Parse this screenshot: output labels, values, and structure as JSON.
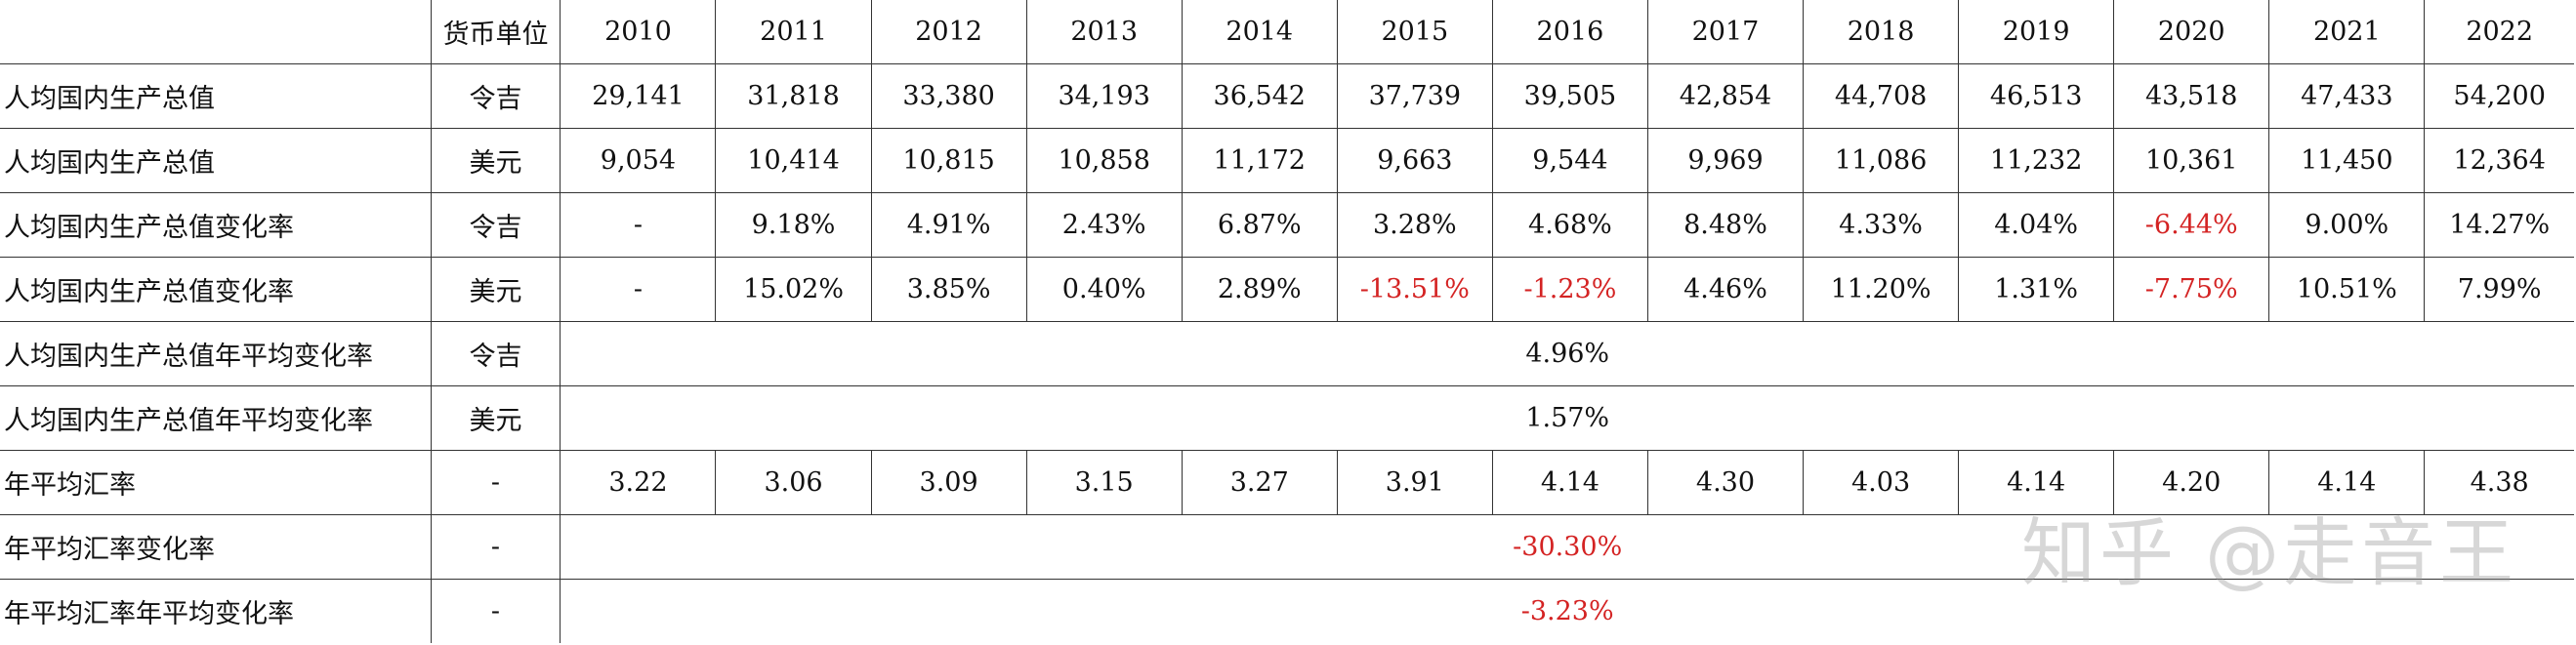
{
  "header": {
    "corner": "",
    "unit_label": "货币单位",
    "years": [
      "2010",
      "2011",
      "2012",
      "2013",
      "2014",
      "2015",
      "2016",
      "2017",
      "2018",
      "2019",
      "2020",
      "2021",
      "2022"
    ]
  },
  "rows": [
    {
      "label": "人均国内生产总值",
      "unit": "令吉",
      "values": [
        "29,141",
        "31,818",
        "33,380",
        "34,193",
        "36,542",
        "37,739",
        "39,505",
        "42,854",
        "44,708",
        "46,513",
        "43,518",
        "47,433",
        "54,200"
      ]
    },
    {
      "label": "人均国内生产总值",
      "unit": "美元",
      "values": [
        "9,054",
        "10,414",
        "10,815",
        "10,858",
        "11,172",
        "9,663",
        "9,544",
        "9,969",
        "11,086",
        "11,232",
        "10,361",
        "11,450",
        "12,364"
      ]
    },
    {
      "label": "人均国内生产总值变化率",
      "unit": "令吉",
      "values": [
        "-",
        "9.18%",
        "4.91%",
        "2.43%",
        "6.87%",
        "3.28%",
        "4.68%",
        "8.48%",
        "4.33%",
        "4.04%",
        "-6.44%",
        "9.00%",
        "14.27%"
      ]
    },
    {
      "label": "人均国内生产总值变化率",
      "unit": "美元",
      "values": [
        "-",
        "15.02%",
        "3.85%",
        "0.40%",
        "2.89%",
        "-13.51%",
        "-1.23%",
        "4.46%",
        "11.20%",
        "1.31%",
        "-7.75%",
        "10.51%",
        "7.99%"
      ]
    },
    {
      "label": "人均国内生产总值年平均变化率",
      "unit": "令吉",
      "merged": "4.96%"
    },
    {
      "label": "人均国内生产总值年平均变化率",
      "unit": "美元",
      "merged": "1.57%"
    },
    {
      "label": "年平均汇率",
      "unit": "-",
      "values": [
        "3.22",
        "3.06",
        "3.09",
        "3.15",
        "3.27",
        "3.91",
        "4.14",
        "4.30",
        "4.03",
        "4.14",
        "4.20",
        "4.14",
        "4.38"
      ]
    },
    {
      "label": "年平均汇率变化率",
      "unit": "-",
      "merged": "-30.30%"
    },
    {
      "label": "年平均汇率年平均变化率",
      "unit": "-",
      "merged": "-3.23%"
    }
  ],
  "watermark": "知乎 @走音王",
  "colors": {
    "text": "#111111",
    "negative": "#d42323",
    "grid": "#333333"
  }
}
